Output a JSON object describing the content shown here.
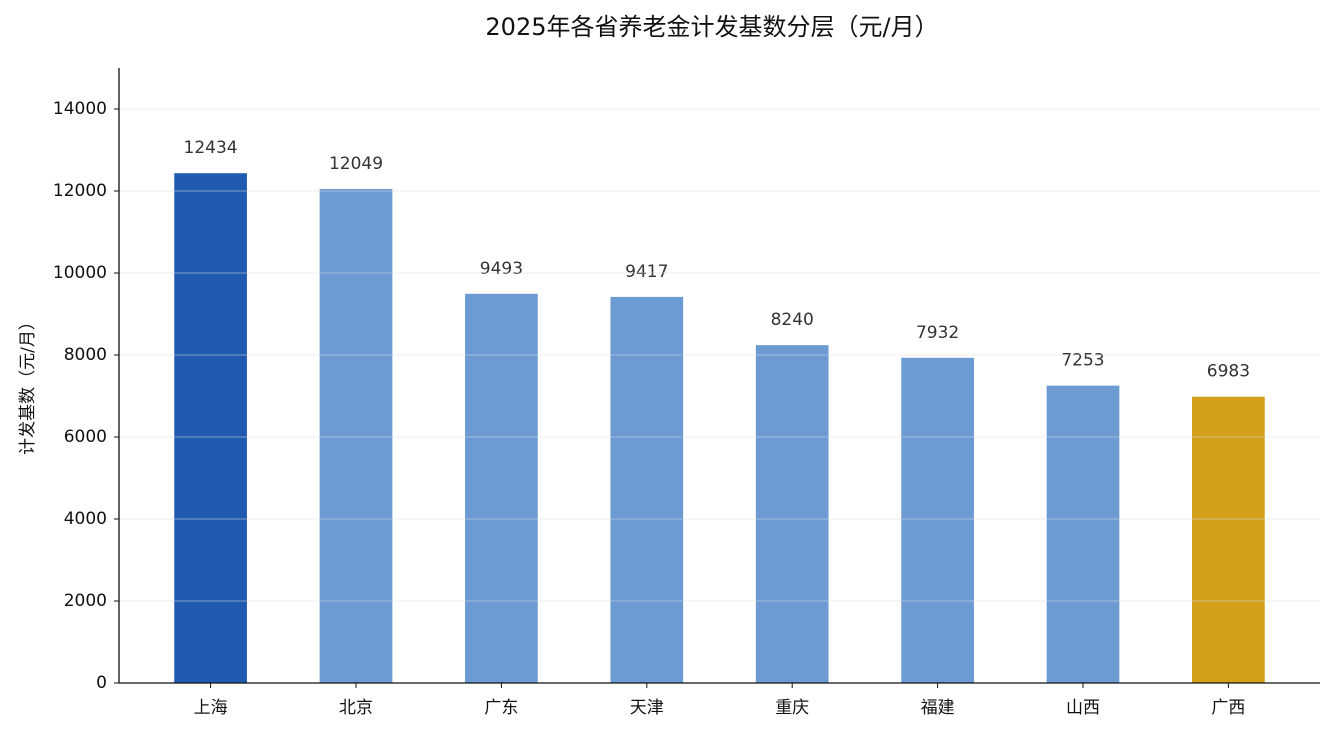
{
  "chart_data": {
    "type": "bar",
    "title": "2025年各省养老金计发基数分层（元/月）",
    "y_label": "计发基数（元/月）",
    "categories": [
      "上海",
      "北京",
      "广东",
      "天津",
      "重庆",
      "福建",
      "山西",
      "广西"
    ],
    "values": [
      12434,
      12049,
      9493,
      9417,
      8240,
      7932,
      7253,
      6983
    ],
    "colors": [
      "#1f5bb0",
      "#6b9bd2",
      "#6b9bd2",
      "#6b9bd2",
      "#6b9bd2",
      "#6b9bd2",
      "#6b9bd2",
      "#d4a01a"
    ],
    "ylim": [
      0,
      15000
    ],
    "yticks": [
      0,
      2000,
      4000,
      6000,
      8000,
      10000,
      12000,
      14000
    ],
    "grid": true
  }
}
